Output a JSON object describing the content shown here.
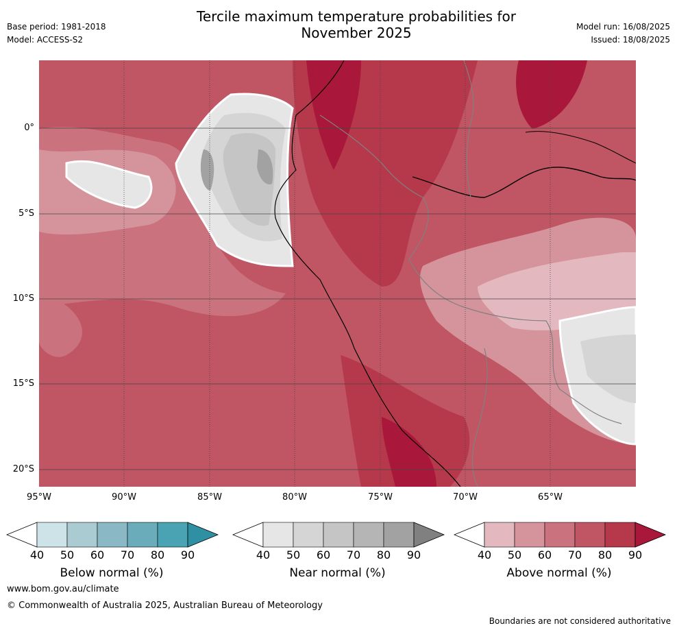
{
  "header": {
    "title_line1": "Tercile maximum temperature probabilities for",
    "title_line2": "November 2025",
    "base_period": "Base period: 1981-2018",
    "model": "Model: ACCESS-S2",
    "model_run": "Model run: 16/08/2025",
    "issued": "Issued: 18/08/2025"
  },
  "map": {
    "lat_labels": [
      "0°",
      "5°S",
      "10°S",
      "15°S",
      "20°S"
    ],
    "lon_labels": [
      "95°W",
      "90°W",
      "85°W",
      "80°W",
      "75°W",
      "70°W",
      "65°W"
    ]
  },
  "colorbars": [
    {
      "title": "Below normal (%)",
      "ticks": [
        "40",
        "50",
        "60",
        "70",
        "80",
        "90"
      ],
      "colors": [
        "#ffffff",
        "#cde3e8",
        "#a9cbd1",
        "#8ab8c4",
        "#6aacba",
        "#4aa3b3",
        "#2f8fa3"
      ]
    },
    {
      "title": "Near normal (%)",
      "ticks": [
        "40",
        "50",
        "60",
        "70",
        "80",
        "90"
      ],
      "colors": [
        "#ffffff",
        "#e6e6e6",
        "#d5d5d5",
        "#c5c5c5",
        "#b5b5b5",
        "#a2a2a2",
        "#808080"
      ]
    },
    {
      "title": "Above normal (%)",
      "ticks": [
        "40",
        "50",
        "60",
        "70",
        "80",
        "90"
      ],
      "colors": [
        "#ffffff",
        "#e3b9bf",
        "#d5939c",
        "#ca737f",
        "#c05564",
        "#b6394b",
        "#a9183a"
      ]
    }
  ],
  "footer": {
    "website": "www.bom.gov.au/climate",
    "copyright": "© Commonwealth of Australia 2025, Australian Bureau of Meteorology",
    "disclaimer": "Boundaries are not considered authoritative"
  }
}
